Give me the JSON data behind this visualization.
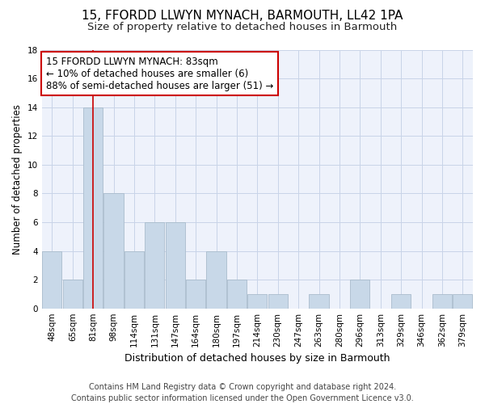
{
  "title": "15, FFORDD LLWYN MYNACH, BARMOUTH, LL42 1PA",
  "subtitle": "Size of property relative to detached houses in Barmouth",
  "xlabel": "Distribution of detached houses by size in Barmouth",
  "ylabel": "Number of detached properties",
  "categories": [
    "48sqm",
    "65sqm",
    "81sqm",
    "98sqm",
    "114sqm",
    "131sqm",
    "147sqm",
    "164sqm",
    "180sqm",
    "197sqm",
    "214sqm",
    "230sqm",
    "247sqm",
    "263sqm",
    "280sqm",
    "296sqm",
    "313sqm",
    "329sqm",
    "346sqm",
    "362sqm",
    "379sqm"
  ],
  "values": [
    4,
    2,
    14,
    8,
    4,
    6,
    6,
    2,
    4,
    2,
    1,
    1,
    0,
    1,
    0,
    2,
    0,
    1,
    0,
    1,
    1
  ],
  "bar_color": "#c8d8e8",
  "bar_edge_color": "#aabccc",
  "grid_color": "#c8d4e8",
  "bg_color": "#eef2fb",
  "vline_x_index": 2,
  "vline_color": "#cc0000",
  "annotation_text": "15 FFORDD LLWYN MYNACH: 83sqm\n← 10% of detached houses are smaller (6)\n88% of semi-detached houses are larger (51) →",
  "annotation_box_facecolor": "#ffffff",
  "annotation_box_edgecolor": "#cc0000",
  "ylim": [
    0,
    18
  ],
  "yticks": [
    0,
    2,
    4,
    6,
    8,
    10,
    12,
    14,
    16,
    18
  ],
  "footer": "Contains HM Land Registry data © Crown copyright and database right 2024.\nContains public sector information licensed under the Open Government Licence v3.0.",
  "title_fontsize": 11,
  "subtitle_fontsize": 9.5,
  "xlabel_fontsize": 9,
  "ylabel_fontsize": 8.5,
  "tick_fontsize": 7.5,
  "annotation_fontsize": 8.5,
  "footer_fontsize": 7
}
